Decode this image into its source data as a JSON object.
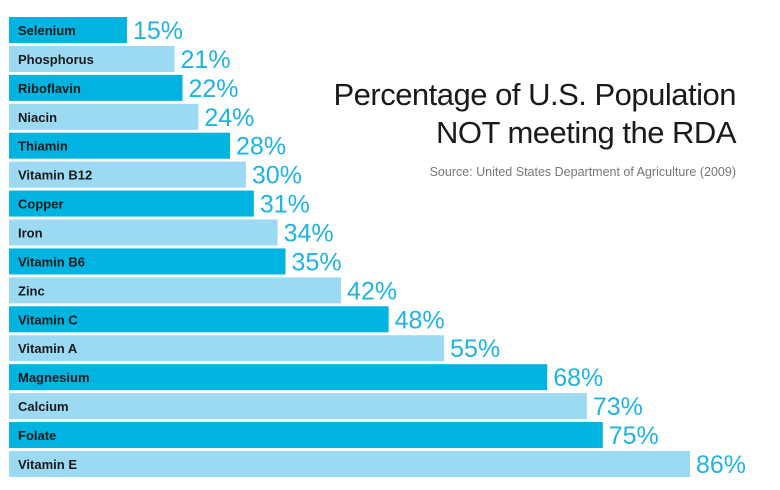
{
  "chart_data": {
    "type": "bar",
    "orientation": "horizontal",
    "title": "Percentage of U.S. Population NOT meeting the RDA",
    "title_lines": [
      "Percentage of U.S. Population",
      "NOT meeting the RDA"
    ],
    "source": "Source: United States Department of Agriculture (2009)",
    "categories": [
      "Selenium",
      "Phosphorus",
      "Riboflavin",
      "Niacin",
      "Thiamin",
      "Vitamin B12",
      "Copper",
      "Iron",
      "Vitamin B6",
      "Zinc",
      "Vitamin C",
      "Vitamin A",
      "Magnesium",
      "Calcium",
      "Folate",
      "Vitamin E"
    ],
    "values": [
      15,
      21,
      22,
      24,
      28,
      30,
      31,
      34,
      35,
      42,
      48,
      55,
      68,
      73,
      75,
      86
    ],
    "value_suffix": "%",
    "xlim": [
      0,
      100
    ],
    "grid": false,
    "legend": "none",
    "colors": {
      "bar_dark": "#00b4e2",
      "bar_light": "#9cd9f2",
      "value_label": "#1db3e3",
      "category_label": "#1a1a1a"
    }
  }
}
